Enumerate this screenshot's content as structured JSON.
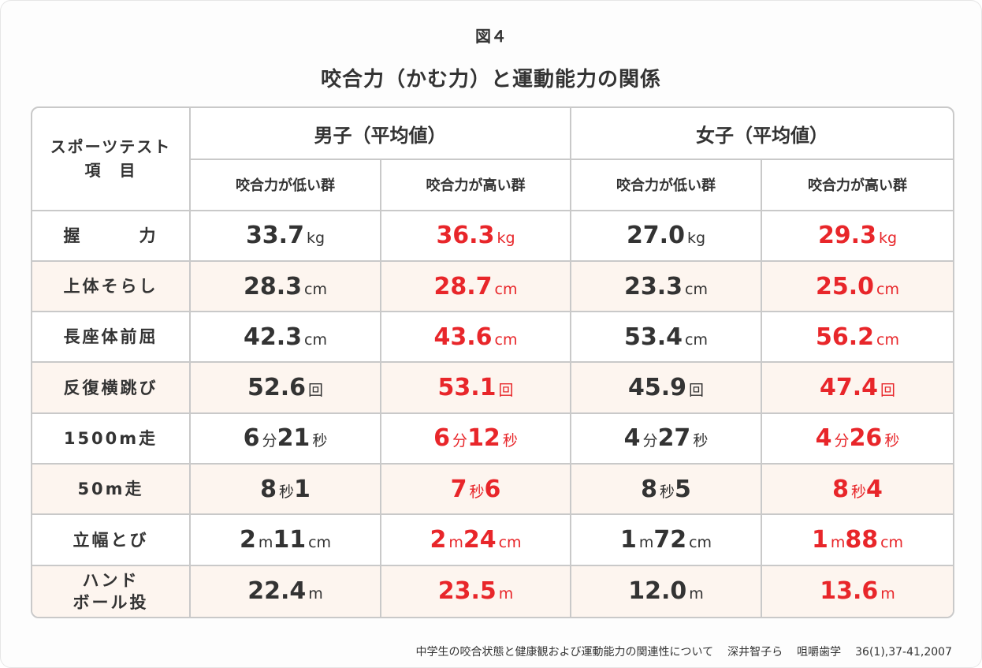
{
  "figure_no": "図４",
  "title": "咬合力（かむ力）と運動能力の関係",
  "source": {
    "text": "中学生の咬合状態と健康観および運動能力の関連性について",
    "authors": "深井智子ら",
    "journal": "咀嚼歯学",
    "ref": "36(1),37-41,2007"
  },
  "chart_data": {
    "type": "table",
    "item_header": "スポーツテスト\n項　目",
    "groups": [
      {
        "name": "男子（平均値）",
        "columns": [
          "咬合力が低い群",
          "咬合力が高い群"
        ]
      },
      {
        "name": "女子（平均値）",
        "columns": [
          "咬合力が低い群",
          "咬合力が高い群"
        ]
      }
    ],
    "highlight_color": "#e8262a",
    "rows": [
      {
        "item": "握　　　力",
        "cells": [
          [
            {
              "n": "33.7"
            },
            {
              "u": "kg"
            }
          ],
          [
            {
              "n": "36.3"
            },
            {
              "u": "kg"
            }
          ],
          [
            {
              "n": "27.0"
            },
            {
              "u": "kg"
            }
          ],
          [
            {
              "n": "29.3"
            },
            {
              "u": "kg"
            }
          ]
        ]
      },
      {
        "item": "上体そらし",
        "cells": [
          [
            {
              "n": "28.3"
            },
            {
              "u": "cm"
            }
          ],
          [
            {
              "n": "28.7"
            },
            {
              "u": "cm"
            }
          ],
          [
            {
              "n": "23.3"
            },
            {
              "u": "cm"
            }
          ],
          [
            {
              "n": "25.0"
            },
            {
              "u": "cm"
            }
          ]
        ]
      },
      {
        "item": "長座体前屈",
        "cells": [
          [
            {
              "n": "42.3"
            },
            {
              "u": "cm"
            }
          ],
          [
            {
              "n": "43.6"
            },
            {
              "u": "cm"
            }
          ],
          [
            {
              "n": "53.4"
            },
            {
              "u": "cm"
            }
          ],
          [
            {
              "n": "56.2"
            },
            {
              "u": "cm"
            }
          ]
        ]
      },
      {
        "item": "反復横跳び",
        "cells": [
          [
            {
              "n": "52.6"
            },
            {
              "u": "回"
            }
          ],
          [
            {
              "n": "53.1"
            },
            {
              "u": "回"
            }
          ],
          [
            {
              "n": "45.9"
            },
            {
              "u": "回"
            }
          ],
          [
            {
              "n": "47.4"
            },
            {
              "u": "回"
            }
          ]
        ]
      },
      {
        "item": "1500m走",
        "cells": [
          [
            {
              "n": "6"
            },
            {
              "u": "分"
            },
            {
              "n": "21"
            },
            {
              "u": "秒"
            }
          ],
          [
            {
              "n": "6"
            },
            {
              "u": "分"
            },
            {
              "n": "12"
            },
            {
              "u": "秒"
            }
          ],
          [
            {
              "n": "4"
            },
            {
              "u": "分"
            },
            {
              "n": "27"
            },
            {
              "u": "秒"
            }
          ],
          [
            {
              "n": "4"
            },
            {
              "u": "分"
            },
            {
              "n": "26"
            },
            {
              "u": "秒"
            }
          ]
        ]
      },
      {
        "item": "50m走",
        "cells": [
          [
            {
              "n": "8"
            },
            {
              "u": "秒"
            },
            {
              "n": "1"
            }
          ],
          [
            {
              "n": "7"
            },
            {
              "u": "秒"
            },
            {
              "n": "6"
            }
          ],
          [
            {
              "n": "8"
            },
            {
              "u": "秒"
            },
            {
              "n": "5"
            }
          ],
          [
            {
              "n": "8"
            },
            {
              "u": "秒"
            },
            {
              "n": "4"
            }
          ]
        ]
      },
      {
        "item": "立幅とび",
        "cells": [
          [
            {
              "n": "2"
            },
            {
              "u": "m"
            },
            {
              "n": "11"
            },
            {
              "u": "cm"
            }
          ],
          [
            {
              "n": "2"
            },
            {
              "u": "m"
            },
            {
              "n": "24"
            },
            {
              "u": "cm"
            }
          ],
          [
            {
              "n": "1"
            },
            {
              "u": "m"
            },
            {
              "n": "72"
            },
            {
              "u": "cm"
            }
          ],
          [
            {
              "n": "1"
            },
            {
              "u": "m"
            },
            {
              "n": "88"
            },
            {
              "u": "cm"
            }
          ]
        ]
      },
      {
        "item": "ハンド\nボール投",
        "cells": [
          [
            {
              "n": "22.4"
            },
            {
              "u": "m"
            }
          ],
          [
            {
              "n": "23.5"
            },
            {
              "u": "m"
            }
          ],
          [
            {
              "n": "12.0"
            },
            {
              "u": "m"
            }
          ],
          [
            {
              "n": "13.6"
            },
            {
              "u": "m"
            }
          ]
        ]
      }
    ]
  }
}
